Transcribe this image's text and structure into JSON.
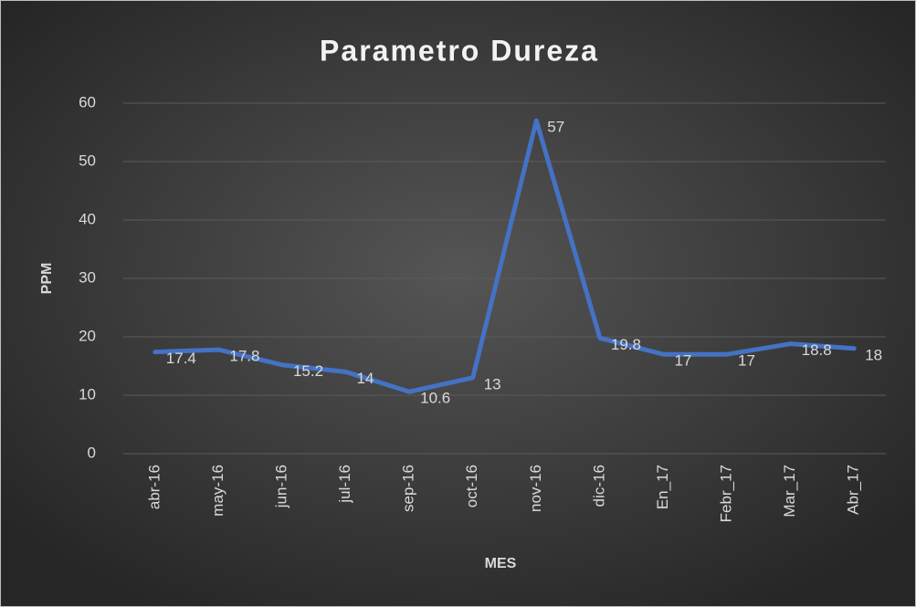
{
  "chart_data": {
    "type": "line",
    "title": "Parametro Dureza",
    "xlabel": "MES",
    "ylabel": "PPM",
    "categories": [
      "abr-16",
      "may-16",
      "jun-16",
      "jul-16",
      "sep-16",
      "oct-16",
      "nov-16",
      "dic-16",
      "En_17",
      "Febr_17",
      "Mar_17",
      "Abr_17"
    ],
    "series": [
      {
        "name": "Dureza",
        "color": "#4472c4",
        "values": [
          17.4,
          17.8,
          15.2,
          14,
          10.6,
          13,
          57,
          19.8,
          17,
          17,
          18.8,
          18
        ]
      }
    ],
    "ylim": [
      0,
      60
    ],
    "yticks": [
      0,
      10,
      20,
      30,
      40,
      50,
      60
    ],
    "grid": true
  }
}
